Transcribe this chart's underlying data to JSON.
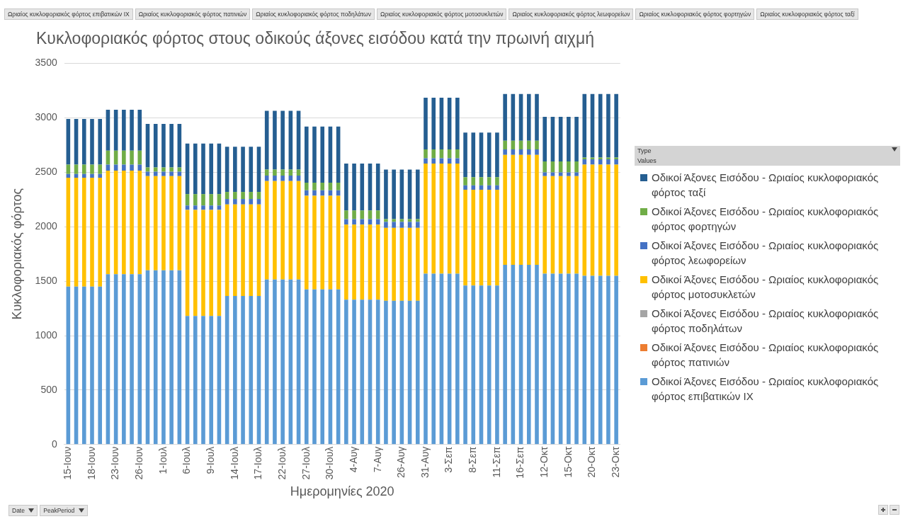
{
  "chart_data": {
    "type": "bar",
    "stacked": true,
    "title": "Κυκλοφοριακός φόρτος στους οδικούς άξονες εισόδου κατά την πρωινή αιχμή",
    "xlabel": "Ημερομηνίες 2020",
    "ylabel": "Κυκλοφοριακός φόρτος",
    "legend_title": "Type",
    "legend": "right",
    "grid": "y",
    "ylim": [
      0,
      3500
    ],
    "yticks": [
      0,
      500,
      1000,
      1500,
      2000,
      2500,
      3000,
      3500
    ],
    "annotations": [
      "Ωριαίος κυκλοφοριακός φόρτος επιβατικών ΙΧ",
      "Ωριαίος κυκλοφοριακός φόρτος πατινιών",
      "Ωριαίος κυκλοφοριακός φόρτος ποδηλάτων",
      "Ωριαίος κυκλοφοριακός φόρτος μοτοσυκλετών",
      "Ωριαίος κυκλοφοριακός φόρτος λεωφορείων",
      "Ωριαίος κυκλοφοριακός φόρτος φορτηγών",
      "Ωριαίος κυκλοφοριακός φόρτος ταξί",
      "Values",
      "Date",
      "PeakPeriod"
    ],
    "categories": [
      "15-Ιουν",
      null,
      null,
      "18-Ιουν",
      null,
      null,
      "23-Ιουν",
      null,
      null,
      "26-Ιουν",
      null,
      null,
      "1-Ιουλ",
      null,
      null,
      "6-Ιουλ",
      null,
      null,
      "9-Ιουλ",
      null,
      null,
      "14-Ιουλ",
      null,
      null,
      "17-Ιουλ",
      null,
      null,
      "22-Ιουλ",
      null,
      null,
      "27-Ιουλ",
      null,
      null,
      "30-Ιουλ",
      null,
      null,
      "4-Αυγ",
      null,
      null,
      "7-Αυγ",
      null,
      null,
      "26-Αυγ",
      null,
      null,
      "31-Αυγ",
      null,
      null,
      "3-Σεπ",
      null,
      null,
      "8-Σεπ",
      null,
      null,
      "11-Σεπ",
      null,
      null,
      "16-Σεπ",
      null,
      null,
      "12-Οκτ",
      null,
      null,
      "15-Οκτ",
      null,
      null,
      "20-Οκτ",
      null,
      null,
      "23-Οκτ"
    ],
    "series": [
      {
        "name": "Οδικοί Άξονες Εισόδου - Ωριαίος κυκλοφοριακός φόρτος επιβατικών ΙΧ",
        "color": "#5b9bd5",
        "values": [
          1450,
          1450,
          1450,
          1450,
          1450,
          1565,
          1565,
          1565,
          1565,
          1565,
          1600,
          1600,
          1600,
          1600,
          1600,
          1180,
          1180,
          1180,
          1180,
          1180,
          1365,
          1365,
          1365,
          1365,
          1365,
          1515,
          1515,
          1515,
          1515,
          1515,
          1425,
          1425,
          1425,
          1425,
          1425,
          1330,
          1330,
          1330,
          1330,
          1330,
          1320,
          1320,
          1320,
          1320,
          1320,
          1570,
          1570,
          1570,
          1570,
          1570,
          1460,
          1460,
          1460,
          1460,
          1460,
          1650,
          1650,
          1650,
          1650,
          1650,
          1570,
          1570,
          1570,
          1570,
          1570,
          1550,
          1550,
          1550,
          1550,
          1550
        ]
      },
      {
        "name": "Οδικοί Άξονες Εισόδου - Ωριαίος κυκλοφοριακός φόρτος πατινιών",
        "color": "#ed7d31",
        "values": [
          0,
          0,
          0,
          0,
          0,
          0,
          0,
          0,
          0,
          0,
          0,
          0,
          0,
          0,
          0,
          0,
          0,
          0,
          0,
          0,
          0,
          0,
          0,
          0,
          0,
          0,
          0,
          0,
          0,
          0,
          0,
          0,
          0,
          0,
          0,
          0,
          0,
          0,
          0,
          0,
          0,
          0,
          0,
          0,
          0,
          0,
          0,
          0,
          0,
          0,
          0,
          0,
          0,
          0,
          0,
          0,
          0,
          0,
          0,
          0,
          0,
          0,
          0,
          0,
          0,
          0,
          0,
          0,
          0,
          0
        ]
      },
      {
        "name": "Οδικοί Άξονες Εισόδου - Ωριαίος κυκλοφοριακός φόρτος ποδηλάτων",
        "color": "#a5a5a5",
        "values": [
          0,
          0,
          0,
          0,
          0,
          0,
          0,
          0,
          0,
          0,
          0,
          0,
          0,
          0,
          0,
          0,
          0,
          0,
          0,
          0,
          0,
          0,
          0,
          0,
          0,
          0,
          0,
          0,
          0,
          0,
          0,
          0,
          0,
          0,
          0,
          0,
          0,
          0,
          0,
          0,
          0,
          0,
          0,
          0,
          0,
          0,
          0,
          0,
          0,
          0,
          0,
          0,
          0,
          0,
          0,
          0,
          0,
          0,
          0,
          0,
          0,
          0,
          0,
          0,
          0,
          0,
          0,
          0,
          0,
          0
        ]
      },
      {
        "name": "Οδικοί Άξονες Εισόδου - Ωριαίος κυκλοφοριακός φόρτος μοτοσυκλετών",
        "color": "#ffc000",
        "values": [
          1000,
          1000,
          1000,
          1000,
          1000,
          950,
          950,
          950,
          950,
          950,
          865,
          865,
          865,
          865,
          865,
          975,
          975,
          975,
          975,
          975,
          840,
          840,
          840,
          840,
          840,
          905,
          905,
          905,
          905,
          905,
          860,
          860,
          860,
          860,
          860,
          690,
          690,
          690,
          690,
          690,
          670,
          670,
          670,
          670,
          670,
          1010,
          1010,
          1010,
          1010,
          1010,
          880,
          880,
          880,
          880,
          880,
          1010,
          1010,
          1010,
          1010,
          1010,
          895,
          895,
          895,
          895,
          895,
          1020,
          1020,
          1020,
          1020,
          1020
        ]
      },
      {
        "name": "Οδικοί Άξονες Εισόδου - Ωριαίος κυκλοφοριακός φόρτος λεωφορείων",
        "color": "#4472c4",
        "values": [
          35,
          35,
          35,
          35,
          35,
          55,
          55,
          55,
          55,
          55,
          40,
          40,
          40,
          40,
          40,
          40,
          40,
          40,
          40,
          40,
          50,
          50,
          50,
          50,
          50,
          50,
          50,
          50,
          50,
          50,
          50,
          50,
          50,
          50,
          50,
          50,
          50,
          50,
          50,
          50,
          55,
          55,
          55,
          55,
          55,
          50,
          50,
          50,
          50,
          50,
          40,
          40,
          40,
          40,
          40,
          50,
          50,
          50,
          50,
          50,
          35,
          35,
          35,
          35,
          35,
          50,
          50,
          50,
          50,
          50
        ]
      },
      {
        "name": "Οδικοί Άξονες Εισόδου - Ωριαίος κυκλοφοριακός φόρτος φορτηγών",
        "color": "#70ad47",
        "values": [
          85,
          85,
          85,
          85,
          85,
          130,
          130,
          130,
          130,
          130,
          40,
          40,
          40,
          40,
          40,
          105,
          105,
          105,
          105,
          105,
          65,
          65,
          65,
          65,
          65,
          55,
          55,
          55,
          55,
          55,
          70,
          70,
          70,
          70,
          70,
          80,
          80,
          80,
          80,
          80,
          25,
          25,
          25,
          25,
          25,
          80,
          80,
          80,
          80,
          80,
          75,
          75,
          75,
          75,
          75,
          80,
          80,
          80,
          80,
          80,
          100,
          100,
          100,
          100,
          100,
          15,
          15,
          15,
          15,
          15
        ]
      },
      {
        "name": "Οδικοί Άξονες Εισόδου - Ωριαίος κυκλοφοριακός φόρτος ταξί",
        "color": "#255e91",
        "values": [
          420,
          420,
          420,
          420,
          420,
          375,
          375,
          375,
          375,
          375,
          400,
          400,
          400,
          400,
          400,
          465,
          465,
          465,
          465,
          465,
          415,
          415,
          415,
          415,
          415,
          540,
          540,
          540,
          540,
          540,
          515,
          515,
          515,
          515,
          515,
          430,
          430,
          430,
          430,
          430,
          455,
          455,
          455,
          455,
          455,
          475,
          475,
          475,
          475,
          475,
          410,
          410,
          410,
          410,
          410,
          430,
          430,
          430,
          430,
          430,
          410,
          410,
          410,
          410,
          410,
          585,
          585,
          585,
          585,
          585
        ]
      }
    ]
  }
}
